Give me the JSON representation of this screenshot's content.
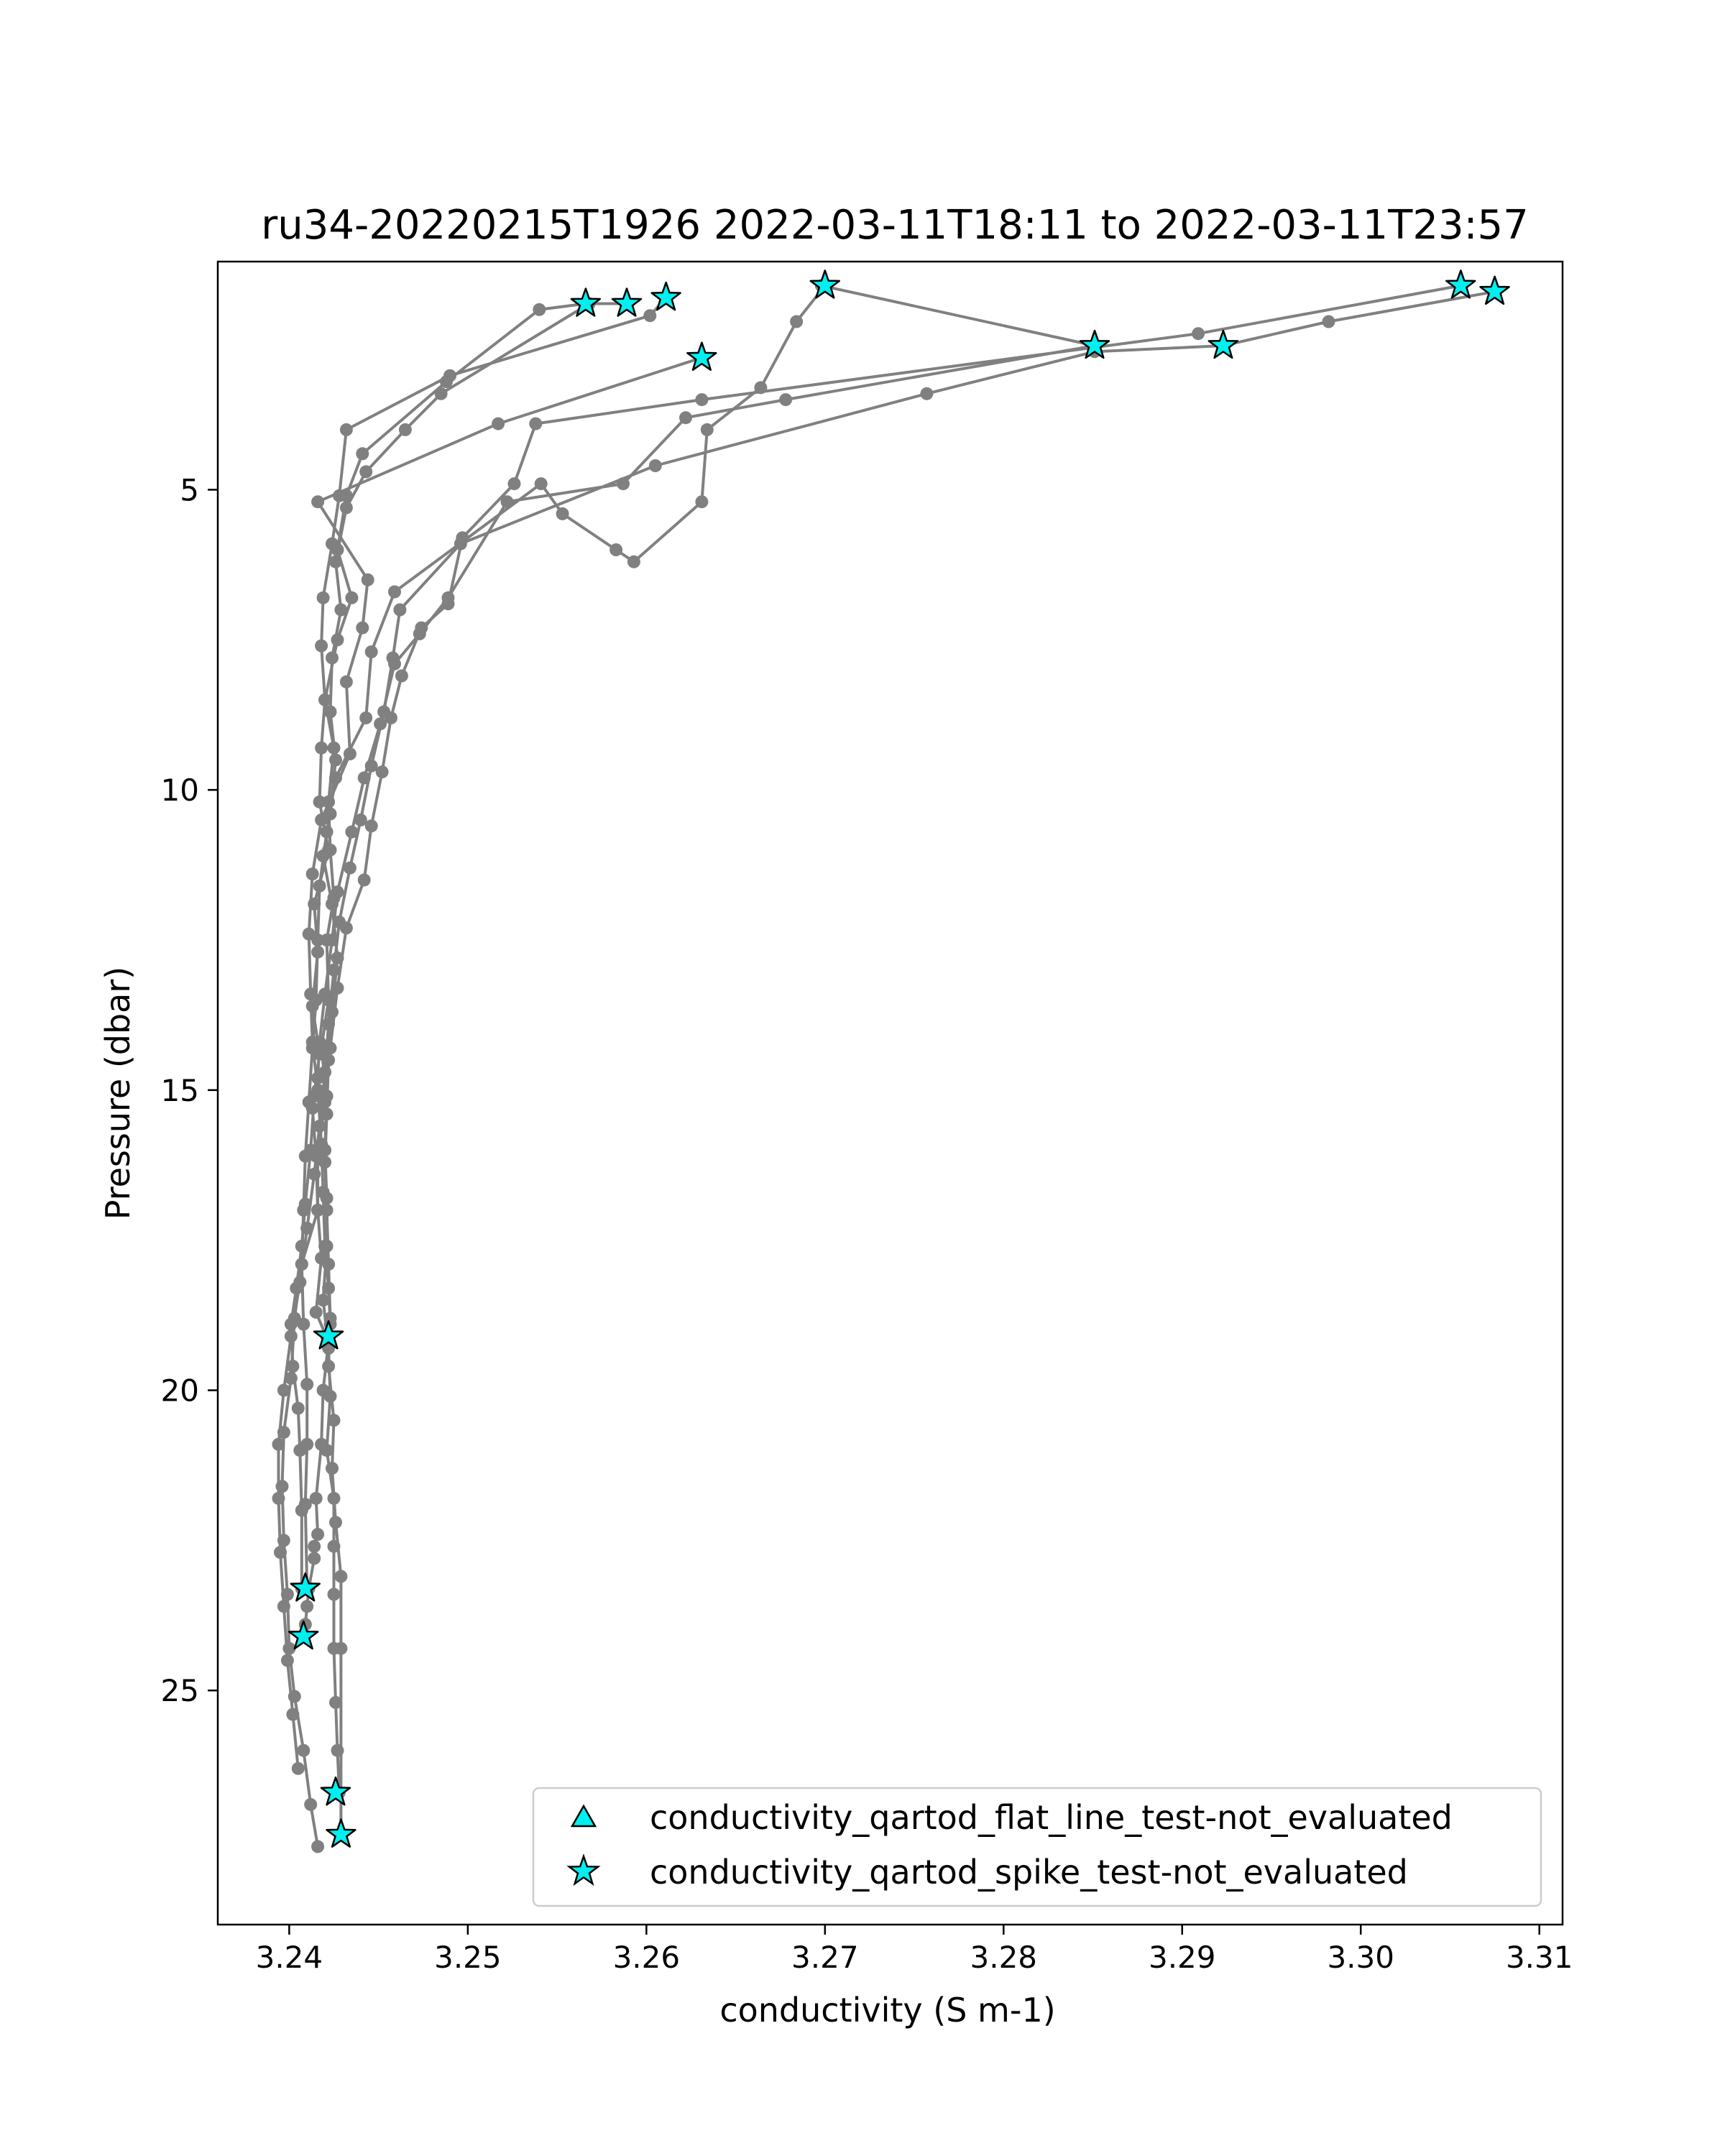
{
  "chart_data": {
    "type": "scatter",
    "title": "ru34-20220215T1926 2022-03-11T18:11 to 2022-03-11T23:57",
    "xlabel": "conductivity (S m-1)",
    "ylabel": "Pressure (dbar)",
    "xlim": [
      3.236,
      3.3113
    ],
    "ylim": [
      28.9,
      1.2
    ],
    "y_inverted": true,
    "grid": false,
    "xticks": [
      3.24,
      3.25,
      3.26,
      3.27,
      3.28,
      3.29,
      3.3,
      3.31
    ],
    "xtick_labels": [
      "3.24",
      "3.25",
      "3.26",
      "3.27",
      "3.28",
      "3.29",
      "3.30",
      "3.31"
    ],
    "yticks": [
      5,
      10,
      15,
      20,
      25
    ],
    "ytick_labels": [
      "5",
      "10",
      "15",
      "20",
      "25"
    ],
    "line_color": "#808080",
    "marker_color": "#808080",
    "flag_color": "#00f0f0",
    "legend_position": "lower-right",
    "legend": [
      {
        "label": "conductivity_qartod_flat_line_test-not_evaluated",
        "marker": "triangle",
        "color": "#00f0f0"
      },
      {
        "label": "conductivity_qartod_spike_test-not_evaluated",
        "marker": "star",
        "color": "#00f0f0"
      }
    ],
    "series": [
      {
        "x": [
          3.2566,
          3.254,
          3.2488,
          3.2441,
          3.2432,
          3.2427,
          3.2435,
          3.2427,
          3.242,
          3.2425,
          3.2422,
          3.2423,
          3.2425,
          3.2421,
          3.2422,
          3.2418,
          3.2421,
          3.242,
          3.2421,
          3.2421,
          3.2419,
          3.2422,
          3.2423,
          3.2421,
          3.2425,
          3.2425,
          3.2425,
          3.2425,
          3.2426,
          3.2427,
          3.2428
        ],
        "y": [
          1.9,
          2.0,
          3.2,
          4.4,
          5.1,
          6.0,
          6.8,
          7.5,
          8.5,
          9.3,
          10.2,
          11.0,
          11.8,
          12.5,
          13.5,
          14.3,
          15.1,
          16.0,
          16.8,
          17.6,
          18.5,
          19.3,
          20.1,
          21.0,
          21.8,
          22.6,
          23.4,
          24.3,
          25.2,
          26.0,
          26.7
        ]
      },
      {
        "x": [
          3.2589,
          3.2568,
          3.2485,
          3.2465,
          3.2443,
          3.2432,
          3.2426,
          3.2429,
          3.2424,
          3.2423,
          3.2426,
          3.2423,
          3.2419,
          3.2424,
          3.2427,
          3.2424,
          3.2422,
          3.2421,
          3.242,
          3.2421,
          3.2422,
          3.2423,
          3.2422,
          3.2425,
          3.2424,
          3.2426,
          3.2429,
          3.2429,
          3.2429
        ],
        "y": [
          1.9,
          1.9,
          3.4,
          4.0,
          4.7,
          5.3,
          6.2,
          7.0,
          7.8,
          8.7,
          9.5,
          10.4,
          11.1,
          11.9,
          12.8,
          13.7,
          14.5,
          15.4,
          16.2,
          17.0,
          17.9,
          18.8,
          19.6,
          20.5,
          21.3,
          22.2,
          23.1,
          24.3,
          27.4
        ]
      },
      {
        "x": [
          3.2611,
          3.2602,
          3.249,
          3.2432,
          3.2428,
          3.2424,
          3.2419,
          3.2418,
          3.242,
          3.2418,
          3.2417,
          3.2422,
          3.2414,
          3.2416,
          3.2413,
          3.2417,
          3.2413,
          3.2415,
          3.2416,
          3.2418,
          3.2415,
          3.2422,
          3.2419,
          3.2418,
          3.2415,
          3.2416,
          3.2414,
          3.2414,
          3.2411,
          3.241,
          3.2409,
          3.2408
        ],
        "y": [
          1.8,
          2.1,
          3.1,
          4.0,
          5.1,
          5.9,
          6.8,
          7.6,
          8.5,
          9.3,
          10.2,
          11.0,
          11.9,
          12.7,
          13.6,
          14.4,
          15.3,
          16.1,
          17.0,
          17.8,
          18.7,
          19.2,
          20.0,
          20.9,
          21.8,
          22.4,
          22.6,
          22.8,
          23.3,
          23.6,
          23.9,
          24.1
        ]
      },
      {
        "x": [
          3.2631,
          3.2517,
          3.2416,
          3.2444,
          3.2441,
          3.2432,
          3.2434,
          3.2418,
          3.2413,
          3.2411,
          3.2412,
          3.2413,
          3.2416,
          3.2418,
          3.2419,
          3.242,
          3.2422,
          3.2423,
          3.2422,
          3.2421
        ],
        "y": [
          2.8,
          3.9,
          5.2,
          6.5,
          7.3,
          8.2,
          9.4,
          10.5,
          11.4,
          12.4,
          13.4,
          14.2,
          15.0,
          15.9,
          16.7,
          17.6,
          18.3,
          18.9,
          19.2,
          19.1
        ]
      },
      {
        "x": [
          3.27,
          3.2684,
          3.2664,
          3.2634,
          3.2631,
          3.2593,
          3.2583,
          3.2553,
          3.2541,
          3.2459,
          3.2446,
          3.2443,
          3.2426,
          3.2421,
          3.2417,
          3.2416,
          3.2415,
          3.2413,
          3.2411,
          3.2409,
          3.2408,
          3.2407,
          3.2408,
          3.241,
          3.241,
          3.2409,
          3.241
        ],
        "y": [
          1.6,
          2.2,
          3.3,
          4.0,
          5.2,
          6.2,
          6.0,
          5.4,
          4.9,
          6.7,
          7.7,
          8.8,
          9.8,
          10.7,
          11.6,
          12.5,
          13.5,
          14.3,
          15.2,
          16.1,
          17.0,
          17.9,
          18.9,
          19.9,
          20.9,
          21.9,
          23.3
        ]
      },
      {
        "x": [
          3.2698,
          3.2851,
          3.2678,
          3.2622,
          3.2587,
          3.2522,
          3.2489,
          3.2473,
          3.2459,
          3.2451,
          3.2442,
          3.2435,
          3.2427,
          3.2424,
          3.242,
          3.2417,
          3.2416,
          3.2414,
          3.2412,
          3.2409,
          3.2407,
          3.2404,
          3.2401,
          3.2402,
          3.2405,
          3.2406,
          3.2407,
          3.2407
        ],
        "y": [
          1.6,
          2.6,
          3.5,
          3.8,
          4.9,
          5.2,
          6.8,
          7.4,
          7.9,
          8.9,
          9.8,
          10.7,
          11.7,
          12.5,
          13.4,
          14.2,
          14.8,
          15.1,
          16.0,
          16.9,
          17.6,
          18.3,
          18.9,
          19.6,
          20.3,
          21.0,
          22.0,
          23.3
        ]
      },
      {
        "x": [
          3.3056,
          3.2909,
          3.2631,
          3.2538,
          3.2526,
          3.2497,
          3.2489,
          3.2474,
          3.2463,
          3.2457,
          3.2452,
          3.2446,
          3.2442,
          3.2432,
          3.2427,
          3.2423,
          3.242,
          3.2416,
          3.2416,
          3.2407,
          3.2403,
          3.2401,
          3.2397,
          3.2396,
          3.2397,
          3.2399,
          3.24,
          3.2403,
          3.2408,
          3.2412,
          3.2416
        ],
        "y": [
          1.6,
          2.4,
          3.5,
          3.9,
          4.9,
          5.8,
          6.9,
          7.3,
          8.1,
          8.8,
          9.7,
          10.6,
          11.5,
          12.3,
          13.3,
          14.3,
          15.2,
          16.1,
          17.0,
          17.9,
          18.8,
          19.8,
          20.7,
          21.6,
          22.5,
          23.4,
          24.3,
          25.1,
          26.0,
          26.9,
          27.6
        ]
      },
      {
        "x": [
          3.3075,
          3.2982,
          3.2923,
          3.2851,
          3.2757,
          3.2605,
          3.2496,
          3.2462,
          3.2458,
          3.2453,
          3.2446,
          3.244,
          3.2434,
          3.2428,
          3.2425,
          3.2422,
          3.242,
          3.2417,
          3.2414,
          3.241,
          3.2406,
          3.2401,
          3.2397,
          3.2394,
          3.2394,
          3.2395,
          3.2397,
          3.2399,
          3.2402,
          3.2405
        ],
        "y": [
          1.7,
          2.2,
          2.6,
          2.7,
          3.4,
          4.6,
          5.9,
          7.0,
          7.8,
          8.7,
          9.6,
          10.5,
          11.3,
          12.2,
          13.0,
          13.9,
          14.7,
          15.6,
          16.4,
          17.3,
          18.2,
          19.1,
          20.0,
          20.9,
          21.8,
          22.7,
          23.6,
          24.5,
          25.4,
          26.3
        ]
      }
    ],
    "spike_flags": [
      {
        "x": 3.2566,
        "y": 1.9
      },
      {
        "x": 3.2589,
        "y": 1.9
      },
      {
        "x": 3.2611,
        "y": 1.8
      },
      {
        "x": 3.2631,
        "y": 2.8
      },
      {
        "x": 3.27,
        "y": 1.6
      },
      {
        "x": 3.2851,
        "y": 2.6
      },
      {
        "x": 3.2923,
        "y": 2.6
      },
      {
        "x": 3.3056,
        "y": 1.6
      },
      {
        "x": 3.3075,
        "y": 1.7
      },
      {
        "x": 3.2422,
        "y": 19.1
      },
      {
        "x": 3.2409,
        "y": 23.3
      },
      {
        "x": 3.2408,
        "y": 24.1
      },
      {
        "x": 3.2426,
        "y": 26.7
      },
      {
        "x": 3.2429,
        "y": 27.4
      }
    ]
  }
}
